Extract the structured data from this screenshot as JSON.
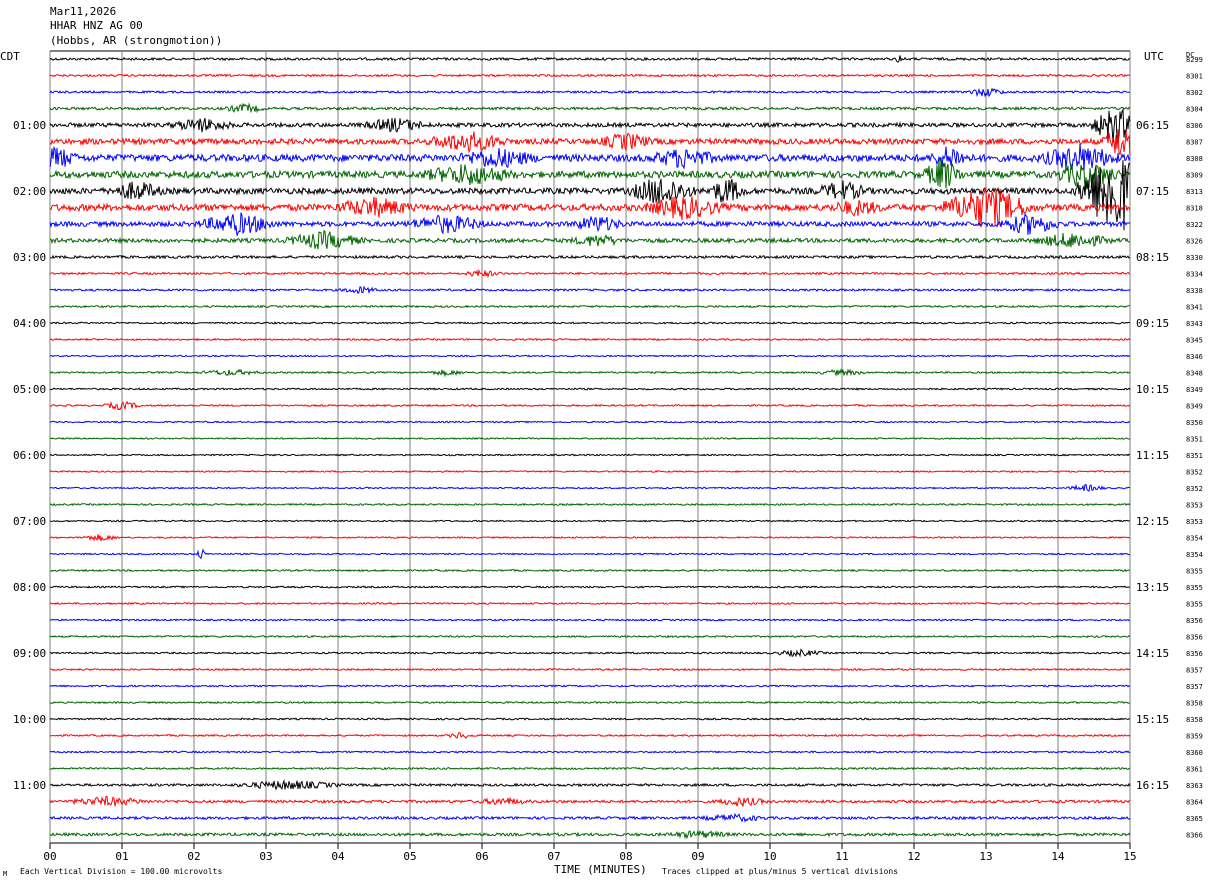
{
  "header": {
    "date": "Mar11,2026",
    "station": "HHAR HNZ AG 00",
    "location": "(Hobbs, AR (strongmotion))"
  },
  "left_tz": "CDT",
  "right_tz": "UTC",
  "dc_label": "DC",
  "footer": {
    "scale": "Each Vertical Division =  100.00 microvolts",
    "xlabel": "TIME (MINUTES)",
    "clip_note": "Traces clipped at plus/minus 5 vertical divisions",
    "corner_mark": "M"
  },
  "colors": {
    "trace": [
      "#000000",
      "#ff0000",
      "#0000ff",
      "#006400"
    ],
    "grid": "#808080"
  },
  "chart_data": {
    "type": "line",
    "title": "HHAR HNZ AG 00",
    "xlabel": "TIME (MINUTES)",
    "xlim": [
      0,
      15
    ],
    "x_ticks": [
      "00",
      "01",
      "02",
      "03",
      "04",
      "05",
      "06",
      "07",
      "08",
      "09",
      "10",
      "11",
      "12",
      "13",
      "14",
      "15"
    ],
    "left_time_labels": [
      "01:00",
      "02:00",
      "03:00",
      "04:00",
      "05:00",
      "06:00",
      "07:00",
      "08:00",
      "09:00",
      "10:00",
      "11:00"
    ],
    "right_time_labels": [
      "06:15",
      "07:15",
      "08:15",
      "09:15",
      "10:15",
      "11:15",
      "12:15",
      "13:15",
      "14:15",
      "15:15",
      "16:15"
    ],
    "dc_offsets": [
      "8299",
      "8301",
      "8302",
      "8304",
      "8306",
      "8307",
      "8308",
      "8309",
      "8313",
      "8318",
      "8322",
      "8326",
      "8330",
      "8334",
      "8338",
      "8341",
      "8343",
      "8345",
      "8346",
      "8348",
      "8349",
      "8349",
      "8350",
      "8351",
      "8351",
      "8352",
      "8352",
      "8353",
      "8353",
      "8354",
      "8354",
      "8355",
      "8355",
      "8355",
      "8356",
      "8356",
      "8356",
      "8357",
      "8357",
      "8358",
      "8358",
      "8359",
      "8360",
      "8361",
      "8363",
      "8364",
      "8365",
      "8366"
    ],
    "traces_per_hour": 4,
    "trace_count": 48,
    "noise_levels": [
      1.2,
      1,
      1,
      1.3,
      2,
      2.8,
      3.5,
      3.3,
      3,
      3.3,
      2.4,
      2,
      1.3,
      1,
      1,
      0.9,
      0.8,
      0.8,
      0.7,
      0.8,
      0.8,
      0.8,
      0.7,
      0.7,
      0.7,
      0.7,
      0.7,
      0.8,
      0.7,
      0.7,
      0.7,
      0.8,
      0.8,
      0.8,
      0.8,
      0.8,
      0.8,
      0.8,
      0.8,
      0.8,
      0.8,
      0.8,
      0.8,
      0.9,
      1.2,
      1.3,
      1.3,
      1.4
    ],
    "events": [
      {
        "trace": 0,
        "minute": 11.8,
        "amp": 6,
        "dur": 0.05
      },
      {
        "trace": 3,
        "minute": 2.7,
        "amp": 4,
        "dur": 0.3
      },
      {
        "trace": 2,
        "minute": 13.0,
        "amp": 4,
        "dur": 0.3
      },
      {
        "trace": 4,
        "minute": 2.1,
        "amp": 6,
        "dur": 0.5
      },
      {
        "trace": 4,
        "minute": 4.8,
        "amp": 6,
        "dur": 0.5
      },
      {
        "trace": 4,
        "minute": 14.8,
        "amp": 18,
        "dur": 0.4
      },
      {
        "trace": 5,
        "minute": 5.8,
        "amp": 9,
        "dur": 0.6
      },
      {
        "trace": 5,
        "minute": 8.0,
        "amp": 7,
        "dur": 0.4
      },
      {
        "trace": 5,
        "minute": 14.9,
        "amp": 18,
        "dur": 0.3
      },
      {
        "trace": 6,
        "minute": 0.1,
        "amp": 9,
        "dur": 0.3
      },
      {
        "trace": 6,
        "minute": 6.2,
        "amp": 8,
        "dur": 0.6
      },
      {
        "trace": 6,
        "minute": 8.8,
        "amp": 8,
        "dur": 0.5
      },
      {
        "trace": 6,
        "minute": 12.5,
        "amp": 10,
        "dur": 0.3
      },
      {
        "trace": 6,
        "minute": 14.3,
        "amp": 12,
        "dur": 0.6
      },
      {
        "trace": 7,
        "minute": 5.8,
        "amp": 9,
        "dur": 0.7
      },
      {
        "trace": 7,
        "minute": 12.4,
        "amp": 15,
        "dur": 0.3
      },
      {
        "trace": 7,
        "minute": 14.4,
        "amp": 12,
        "dur": 0.5
      },
      {
        "trace": 8,
        "minute": 1.2,
        "amp": 8,
        "dur": 0.4
      },
      {
        "trace": 8,
        "minute": 8.5,
        "amp": 14,
        "dur": 0.5
      },
      {
        "trace": 8,
        "minute": 9.4,
        "amp": 12,
        "dur": 0.3
      },
      {
        "trace": 8,
        "minute": 11.0,
        "amp": 8,
        "dur": 0.4
      },
      {
        "trace": 8,
        "minute": 14.8,
        "amp": 45,
        "dur": 0.6
      },
      {
        "trace": 9,
        "minute": 4.5,
        "amp": 8,
        "dur": 0.6
      },
      {
        "trace": 9,
        "minute": 8.8,
        "amp": 10,
        "dur": 0.6
      },
      {
        "trace": 9,
        "minute": 13.0,
        "amp": 20,
        "dur": 0.7
      },
      {
        "trace": 9,
        "minute": 11.2,
        "amp": 6,
        "dur": 0.4
      },
      {
        "trace": 10,
        "minute": 2.6,
        "amp": 10,
        "dur": 0.6
      },
      {
        "trace": 10,
        "minute": 5.5,
        "amp": 8,
        "dur": 0.6
      },
      {
        "trace": 10,
        "minute": 7.6,
        "amp": 7,
        "dur": 0.4
      },
      {
        "trace": 10,
        "minute": 13.6,
        "amp": 9,
        "dur": 0.5
      },
      {
        "trace": 11,
        "minute": 3.8,
        "amp": 8,
        "dur": 0.6
      },
      {
        "trace": 11,
        "minute": 7.6,
        "amp": 5,
        "dur": 0.4
      },
      {
        "trace": 11,
        "minute": 14.2,
        "amp": 7,
        "dur": 0.6
      },
      {
        "trace": 13,
        "minute": 6.0,
        "amp": 3,
        "dur": 0.3
      },
      {
        "trace": 14,
        "minute": 4.3,
        "amp": 3,
        "dur": 0.3
      },
      {
        "trace": 19,
        "minute": 2.5,
        "amp": 2.5,
        "dur": 0.5
      },
      {
        "trace": 19,
        "minute": 5.5,
        "amp": 2.5,
        "dur": 0.3
      },
      {
        "trace": 19,
        "minute": 11.0,
        "amp": 2.5,
        "dur": 0.4
      },
      {
        "trace": 21,
        "minute": 1.0,
        "amp": 4,
        "dur": 0.3
      },
      {
        "trace": 26,
        "minute": 14.4,
        "amp": 3,
        "dur": 0.3
      },
      {
        "trace": 29,
        "minute": 0.7,
        "amp": 3,
        "dur": 0.3
      },
      {
        "trace": 30,
        "minute": 2.1,
        "amp": 6,
        "dur": 0.08
      },
      {
        "trace": 36,
        "minute": 10.4,
        "amp": 3,
        "dur": 0.4
      },
      {
        "trace": 41,
        "minute": 5.7,
        "amp": 3,
        "dur": 0.2
      },
      {
        "trace": 44,
        "minute": 3.3,
        "amp": 4,
        "dur": 0.8
      },
      {
        "trace": 45,
        "minute": 0.8,
        "amp": 4,
        "dur": 0.6
      },
      {
        "trace": 45,
        "minute": 6.3,
        "amp": 3,
        "dur": 0.4
      },
      {
        "trace": 45,
        "minute": 9.6,
        "amp": 4,
        "dur": 0.4
      },
      {
        "trace": 46,
        "minute": 9.5,
        "amp": 3,
        "dur": 0.5
      },
      {
        "trace": 47,
        "minute": 9.0,
        "amp": 3,
        "dur": 0.5
      }
    ]
  }
}
